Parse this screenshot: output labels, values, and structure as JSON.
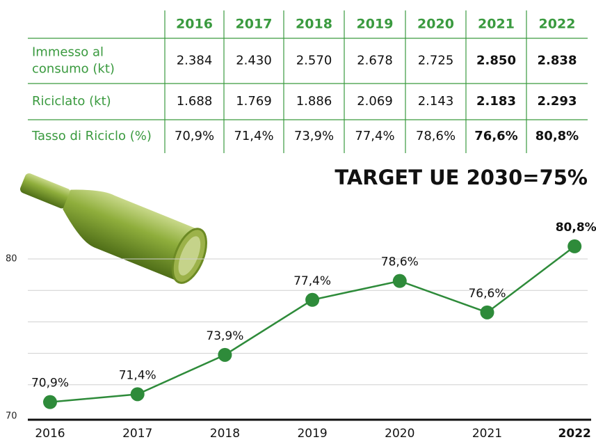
{
  "table": {
    "columns": [
      "2016",
      "2017",
      "2018",
      "2019",
      "2020",
      "2021",
      "2022"
    ],
    "rows": [
      {
        "label": [
          "Immesso al",
          "consumo (kt)"
        ],
        "values": [
          "2.384",
          "2.430",
          "2.570",
          "2.678",
          "2.725",
          "2.850",
          "2.838"
        ]
      },
      {
        "label": [
          "Riciclato (kt)"
        ],
        "values": [
          "1.688",
          "1.769",
          "1.886",
          "2.069",
          "2.143",
          "2.183",
          "2.293"
        ]
      },
      {
        "label": [
          "Tasso di Riciclo (%)"
        ],
        "values": [
          "70,9%",
          "71,4%",
          "73,9%",
          "77,4%",
          "78,6%",
          "76,6%",
          "80,8%"
        ]
      }
    ]
  },
  "chart_data": {
    "type": "line",
    "title": "TARGET UE 2030=75%",
    "categories": [
      "2016",
      "2017",
      "2018",
      "2019",
      "2020",
      "2021",
      "2022"
    ],
    "values": [
      70.9,
      71.4,
      73.9,
      77.4,
      78.6,
      76.6,
      80.8
    ],
    "value_labels": [
      "70,9%",
      "71,4%",
      "73,9%",
      "77,4%",
      "78,6%",
      "76,6%",
      "80,8%"
    ],
    "color": "#2e8b3a",
    "ylim": [
      70,
      82
    ],
    "yticks": [
      70,
      80
    ],
    "ygrid": [
      72,
      74,
      76,
      78,
      80
    ]
  }
}
